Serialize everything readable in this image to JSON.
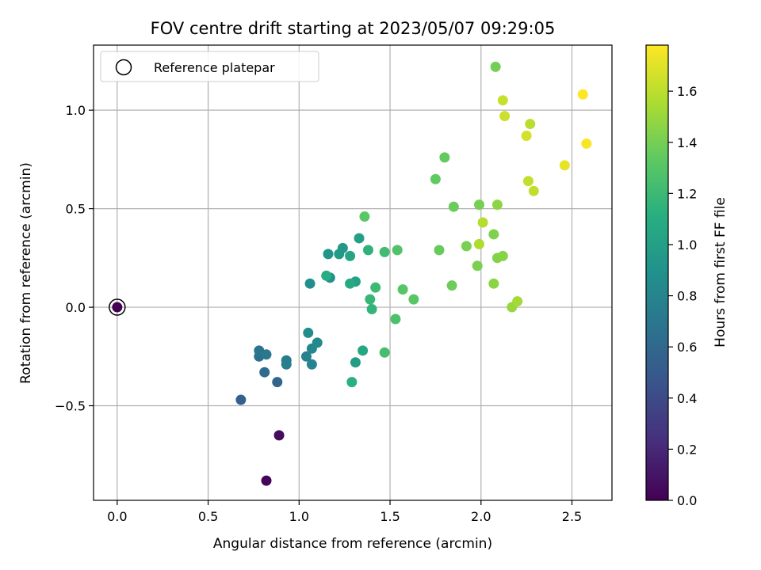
{
  "chart_data": {
    "type": "scatter",
    "title": "FOV centre drift starting at 2023/05/07 09:29:05",
    "xlabel": "Angular distance from reference (arcmin)",
    "ylabel": "Rotation from reference (arcmin)",
    "colorbar_label": "Hours from first FF file",
    "xlim": [
      -0.13,
      2.72
    ],
    "ylim": [
      -0.98,
      1.33
    ],
    "clim": [
      0.0,
      1.78
    ],
    "colormap": "viridis",
    "grid": true,
    "legend_position": "top-left",
    "xticks": [
      0.0,
      0.5,
      1.0,
      1.5,
      2.0,
      2.5
    ],
    "xtick_labels": [
      "0.0",
      "0.5",
      "1.0",
      "1.5",
      "2.0",
      "2.5"
    ],
    "yticks": [
      -0.5,
      0.0,
      0.5,
      1.0
    ],
    "ytick_labels": [
      "−0.5",
      "0.0",
      "0.5",
      "1.0"
    ],
    "cticks": [
      0.0,
      0.2,
      0.4,
      0.6,
      0.8,
      1.0,
      1.2,
      1.4,
      1.6
    ],
    "ctick_labels": [
      "0.0",
      "0.2",
      "0.4",
      "0.6",
      "0.8",
      "1.0",
      "1.2",
      "1.4",
      "1.6"
    ],
    "reference": {
      "name": "Reference platepar",
      "x": 0.0,
      "y": 0.0,
      "c": 0.0
    },
    "points": [
      {
        "x": 0.0,
        "y": 0.0,
        "c": 0.0
      },
      {
        "x": 0.82,
        "y": -0.88,
        "c": 0.02
      },
      {
        "x": 0.89,
        "y": -0.65,
        "c": 0.05
      },
      {
        "x": 0.68,
        "y": -0.47,
        "c": 0.55
      },
      {
        "x": 0.88,
        "y": -0.38,
        "c": 0.58
      },
      {
        "x": 0.81,
        "y": -0.33,
        "c": 0.62
      },
      {
        "x": 0.78,
        "y": -0.25,
        "c": 0.65
      },
      {
        "x": 0.78,
        "y": -0.22,
        "c": 0.68
      },
      {
        "x": 0.82,
        "y": -0.24,
        "c": 0.7
      },
      {
        "x": 0.93,
        "y": -0.27,
        "c": 0.74
      },
      {
        "x": 0.93,
        "y": -0.29,
        "c": 0.76
      },
      {
        "x": 1.04,
        "y": -0.25,
        "c": 0.78
      },
      {
        "x": 1.07,
        "y": -0.29,
        "c": 0.8
      },
      {
        "x": 1.07,
        "y": -0.21,
        "c": 0.82
      },
      {
        "x": 1.1,
        "y": -0.18,
        "c": 0.84
      },
      {
        "x": 1.05,
        "y": -0.13,
        "c": 0.86
      },
      {
        "x": 1.06,
        "y": 0.12,
        "c": 0.88
      },
      {
        "x": 1.17,
        "y": 0.15,
        "c": 0.9
      },
      {
        "x": 1.16,
        "y": 0.27,
        "c": 0.92
      },
      {
        "x": 1.24,
        "y": 0.3,
        "c": 0.94
      },
      {
        "x": 1.22,
        "y": 0.27,
        "c": 0.96
      },
      {
        "x": 1.31,
        "y": -0.28,
        "c": 0.98
      },
      {
        "x": 1.33,
        "y": 0.35,
        "c": 1.0
      },
      {
        "x": 1.31,
        "y": 0.13,
        "c": 1.02
      },
      {
        "x": 1.28,
        "y": 0.26,
        "c": 1.04
      },
      {
        "x": 1.35,
        "y": -0.22,
        "c": 1.06
      },
      {
        "x": 1.28,
        "y": 0.12,
        "c": 1.08
      },
      {
        "x": 1.15,
        "y": 0.16,
        "c": 1.1
      },
      {
        "x": 1.29,
        "y": -0.38,
        "c": 1.12
      },
      {
        "x": 1.38,
        "y": 0.29,
        "c": 1.14
      },
      {
        "x": 1.4,
        "y": -0.01,
        "c": 1.16
      },
      {
        "x": 1.39,
        "y": 0.04,
        "c": 1.18
      },
      {
        "x": 1.42,
        "y": 0.1,
        "c": 1.2
      },
      {
        "x": 1.47,
        "y": 0.28,
        "c": 1.22
      },
      {
        "x": 1.47,
        "y": -0.23,
        "c": 1.24
      },
      {
        "x": 1.53,
        "y": -0.06,
        "c": 1.26
      },
      {
        "x": 1.54,
        "y": 0.29,
        "c": 1.28
      },
      {
        "x": 1.57,
        "y": 0.09,
        "c": 1.3
      },
      {
        "x": 1.63,
        "y": 0.04,
        "c": 1.31
      },
      {
        "x": 1.36,
        "y": 0.46,
        "c": 1.32
      },
      {
        "x": 1.75,
        "y": 0.65,
        "c": 1.34
      },
      {
        "x": 1.8,
        "y": 0.76,
        "c": 1.35
      },
      {
        "x": 1.77,
        "y": 0.29,
        "c": 1.36
      },
      {
        "x": 1.85,
        "y": 0.51,
        "c": 1.37
      },
      {
        "x": 1.84,
        "y": 0.11,
        "c": 1.38
      },
      {
        "x": 2.08,
        "y": 1.22,
        "c": 1.39
      },
      {
        "x": 1.99,
        "y": 0.52,
        "c": 1.4
      },
      {
        "x": 1.92,
        "y": 0.31,
        "c": 1.41
      },
      {
        "x": 1.98,
        "y": 0.21,
        "c": 1.42
      },
      {
        "x": 2.07,
        "y": 0.37,
        "c": 1.43
      },
      {
        "x": 2.09,
        "y": 0.25,
        "c": 1.44
      },
      {
        "x": 2.12,
        "y": 0.26,
        "c": 1.45
      },
      {
        "x": 2.07,
        "y": 0.12,
        "c": 1.46
      },
      {
        "x": 2.09,
        "y": 0.52,
        "c": 1.47
      },
      {
        "x": 2.17,
        "y": 0.0,
        "c": 1.5
      },
      {
        "x": 2.2,
        "y": 0.03,
        "c": 1.53
      },
      {
        "x": 1.99,
        "y": 0.32,
        "c": 1.56
      },
      {
        "x": 2.01,
        "y": 0.43,
        "c": 1.58
      },
      {
        "x": 2.27,
        "y": 0.93,
        "c": 1.59
      },
      {
        "x": 2.29,
        "y": 0.59,
        "c": 1.61
      },
      {
        "x": 2.26,
        "y": 0.64,
        "c": 1.62
      },
      {
        "x": 2.12,
        "y": 1.05,
        "c": 1.63
      },
      {
        "x": 2.13,
        "y": 0.97,
        "c": 1.64
      },
      {
        "x": 2.25,
        "y": 0.87,
        "c": 1.66
      },
      {
        "x": 2.46,
        "y": 0.72,
        "c": 1.72
      },
      {
        "x": 2.58,
        "y": 0.83,
        "c": 1.76
      },
      {
        "x": 2.56,
        "y": 1.08,
        "c": 1.78
      }
    ]
  }
}
